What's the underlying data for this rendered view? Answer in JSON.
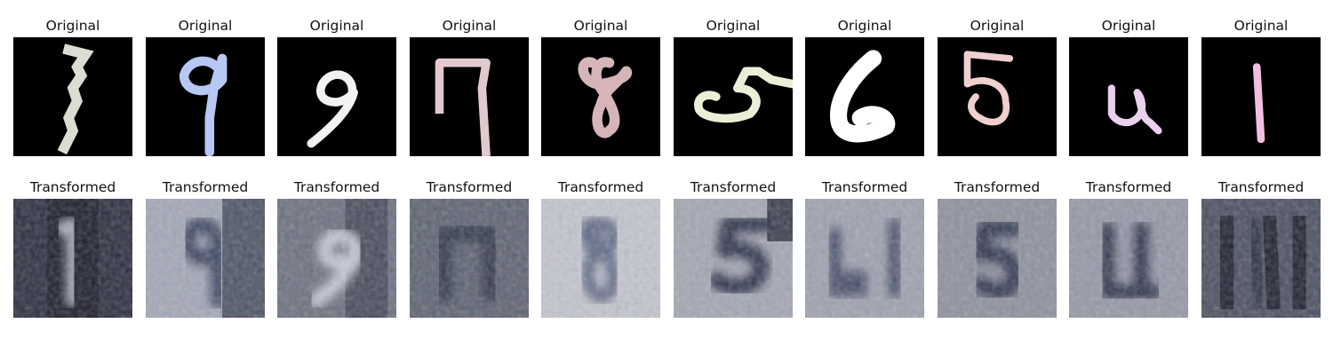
{
  "labels": {
    "original": "Original",
    "transformed": "Transformed"
  },
  "samples": [
    {
      "digit": "1",
      "orig_color": "#dcdcd2",
      "trans_bg": "#2b2c3e",
      "trans_fg": "#a9aebf"
    },
    {
      "digit": "9",
      "orig_color": "#b7c8f5",
      "trans_bg": "#a3a8b8",
      "trans_fg": "#3b4560"
    },
    {
      "digit": "9",
      "orig_color": "#f2f2f2",
      "trans_bg": "#6c7080",
      "trans_fg": "#c7ccd8"
    },
    {
      "digit": "7",
      "orig_color": "#e2c9cd",
      "trans_bg": "#5d6272",
      "trans_fg": "#30384a"
    },
    {
      "digit": "8",
      "orig_color": "#d6b5b8",
      "trans_bg": "#c4c6cf",
      "trans_fg": "#5e6785"
    },
    {
      "digit": "5",
      "orig_color": "#ecefd8",
      "trans_bg": "#a4a7b4",
      "trans_fg": "#2a3048"
    },
    {
      "digit": "6",
      "orig_color": "#ffffff",
      "trans_bg": "#9fa2b0",
      "trans_fg": "#3a4360"
    },
    {
      "digit": "5",
      "orig_color": "#f0cfcf",
      "trans_bg": "#8e919f",
      "trans_fg": "#2e3550"
    },
    {
      "digit": "4",
      "orig_color": "#ead2ee",
      "trans_bg": "#9598a8",
      "trans_fg": "#2c3248"
    },
    {
      "digit": "1",
      "orig_color": "#f3bfe0",
      "trans_bg": "#4a4e60",
      "trans_fg": "#1e2538"
    }
  ]
}
